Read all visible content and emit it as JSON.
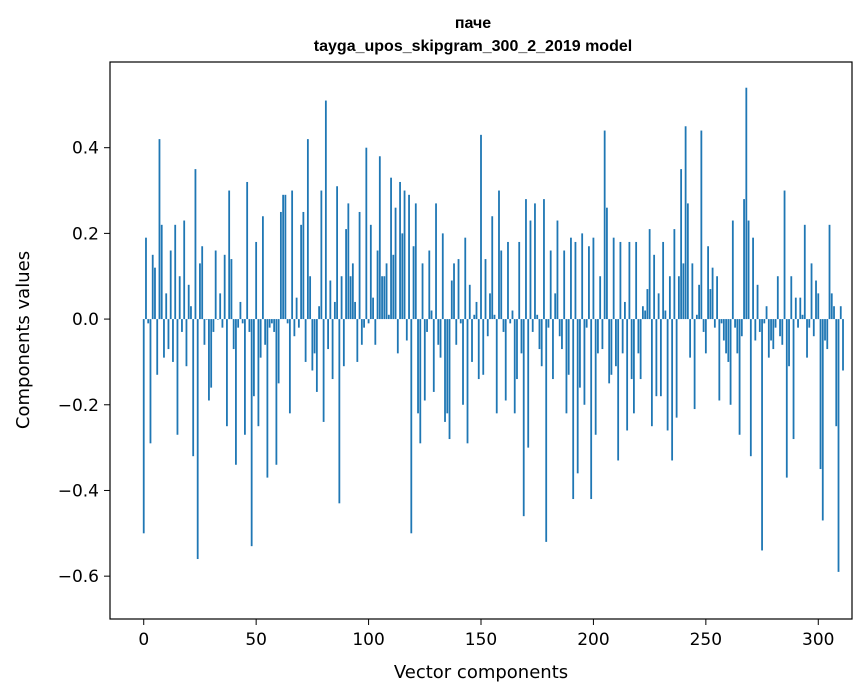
{
  "chart_data": {
    "type": "bar",
    "title": "паче",
    "subtitle": "tayga_upos_skipgram_300_2_2019 model",
    "xlabel": "Vector components",
    "ylabel": "Components values",
    "xlim": [
      -15,
      315
    ],
    "ylim": [
      -0.7,
      0.6
    ],
    "x_ticks": [
      0,
      50,
      100,
      150,
      200,
      250,
      300
    ],
    "x_tick_labels": [
      "0",
      "50",
      "100",
      "150",
      "200",
      "250",
      "300"
    ],
    "y_ticks": [
      -0.6,
      -0.4,
      -0.2,
      0.0,
      0.2,
      0.4
    ],
    "y_tick_labels": [
      "−0.6",
      "−0.4",
      "−0.2",
      "0.0",
      "0.2",
      "0.4"
    ],
    "bar_color": "#1f77b4",
    "grid": false,
    "values": [
      -0.5,
      0.19,
      -0.01,
      -0.29,
      0.15,
      0.12,
      -0.13,
      0.42,
      0.22,
      -0.09,
      0.06,
      -0.07,
      0.16,
      -0.1,
      0.22,
      -0.27,
      0.1,
      -0.03,
      0.23,
      -0.11,
      0.08,
      0.03,
      -0.32,
      0.35,
      -0.56,
      0.13,
      0.17,
      -0.06,
      0.0,
      -0.19,
      -0.16,
      -0.03,
      0.16,
      0.0,
      0.06,
      -0.02,
      0.15,
      -0.25,
      0.3,
      0.14,
      -0.07,
      -0.34,
      -0.02,
      0.04,
      -0.01,
      -0.27,
      0.32,
      -0.03,
      -0.53,
      -0.18,
      0.18,
      -0.25,
      -0.09,
      0.24,
      -0.06,
      -0.37,
      -0.02,
      -0.01,
      -0.03,
      -0.34,
      -0.15,
      0.25,
      0.29,
      0.29,
      -0.01,
      -0.22,
      0.3,
      -0.04,
      0.05,
      -0.02,
      0.22,
      0.25,
      -0.1,
      0.42,
      0.1,
      -0.12,
      -0.08,
      -0.17,
      0.03,
      0.3,
      -0.24,
      0.51,
      -0.07,
      0.09,
      -0.14,
      0.04,
      0.31,
      -0.43,
      0.1,
      -0.11,
      0.21,
      0.27,
      0.1,
      0.13,
      0.04,
      -0.1,
      0.25,
      -0.06,
      -0.02,
      0.4,
      -0.01,
      0.22,
      0.05,
      -0.06,
      0.16,
      0.38,
      0.1,
      0.1,
      0.13,
      0.01,
      0.33,
      0.15,
      0.26,
      -0.08,
      0.32,
      0.2,
      0.3,
      -0.05,
      0.29,
      -0.5,
      0.17,
      0.27,
      -0.22,
      -0.29,
      0.13,
      -0.19,
      -0.03,
      0.16,
      0.02,
      -0.17,
      0.27,
      -0.06,
      -0.09,
      0.2,
      -0.24,
      -0.22,
      -0.28,
      0.09,
      0.13,
      -0.06,
      0.14,
      -0.01,
      -0.2,
      0.19,
      -0.29,
      0.08,
      -0.1,
      0.01,
      0.04,
      -0.14,
      0.43,
      -0.13,
      0.14,
      -0.04,
      0.06,
      0.24,
      0.01,
      -0.22,
      0.3,
      0.16,
      -0.03,
      -0.19,
      0.18,
      -0.01,
      0.02,
      -0.22,
      -0.14,
      0.18,
      -0.08,
      -0.46,
      0.28,
      -0.3,
      0.23,
      -0.03,
      0.27,
      0.01,
      -0.07,
      -0.11,
      0.28,
      -0.52,
      -0.02,
      0.16,
      -0.14,
      0.06,
      0.23,
      -0.04,
      -0.07,
      0.16,
      -0.22,
      -0.13,
      0.19,
      -0.42,
      0.18,
      -0.36,
      -0.16,
      0.2,
      -0.2,
      -0.02,
      0.17,
      -0.42,
      0.19,
      -0.27,
      -0.08,
      0.1,
      -0.07,
      0.44,
      0.26,
      -0.15,
      -0.13,
      0.19,
      -0.11,
      -0.33,
      0.18,
      -0.08,
      0.04,
      -0.26,
      0.18,
      -0.14,
      -0.22,
      0.18,
      -0.08,
      -0.14,
      0.03,
      0.02,
      0.07,
      0.21,
      -0.25,
      0.15,
      -0.18,
      0.06,
      -0.18,
      0.18,
      0.02,
      -0.26,
      0.1,
      -0.33,
      0.21,
      -0.23,
      0.1,
      0.35,
      0.13,
      0.45,
      0.27,
      -0.09,
      0.13,
      -0.21,
      0.01,
      0.08,
      0.44,
      -0.03,
      -0.08,
      0.17,
      0.07,
      0.12,
      -0.02,
      0.1,
      -0.19,
      -0.01,
      -0.05,
      -0.08,
      -0.1,
      -0.2,
      0.23,
      -0.02,
      -0.08,
      -0.27,
      -0.04,
      0.28,
      0.54,
      0.23,
      -0.32,
      0.19,
      -0.05,
      0.08,
      -0.03,
      -0.54,
      -0.01,
      0.03,
      -0.09,
      -0.05,
      -0.07,
      -0.02,
      0.1,
      -0.04,
      -0.06,
      0.3,
      -0.37,
      -0.11,
      0.1,
      -0.28,
      0.05,
      -0.02,
      0.05,
      0.01,
      0.22,
      -0.09,
      -0.02,
      0.13,
      -0.04,
      0.09,
      0.06,
      -0.35,
      -0.47,
      -0.05,
      -0.07,
      0.22,
      0.06,
      0.03,
      -0.25,
      -0.59,
      0.03,
      -0.12
    ]
  }
}
